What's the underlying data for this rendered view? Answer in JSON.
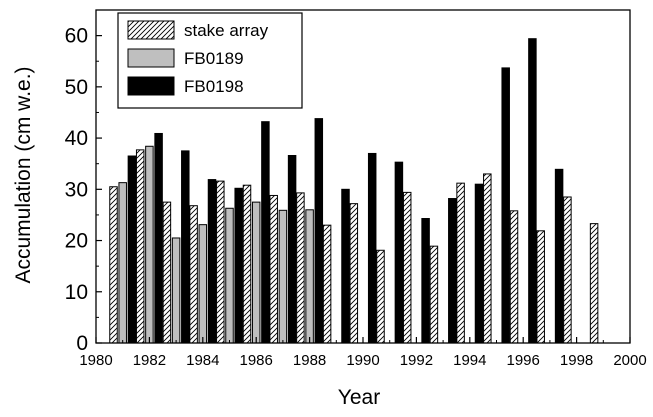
{
  "chart_data": {
    "type": "bar",
    "xlabel": "Year",
    "ylabel": "Accumulation (cm w.e.)",
    "xlim": [
      1980,
      2000
    ],
    "ylim": [
      0,
      65
    ],
    "xticks": [
      1980,
      1982,
      1984,
      1986,
      1988,
      1990,
      1992,
      1994,
      1996,
      1998,
      2000
    ],
    "yticks": [
      0,
      10,
      20,
      30,
      40,
      50,
      60
    ],
    "grid": false,
    "legend_position": "top-left",
    "series": [
      {
        "name": "stake array",
        "fill": "hatch",
        "color": "#000000",
        "points": [
          {
            "x": 1981,
            "y": 30.5
          },
          {
            "x": 1982,
            "y": 37.7
          },
          {
            "x": 1983,
            "y": 27.5
          },
          {
            "x": 1984,
            "y": 26.8
          },
          {
            "x": 1985,
            "y": 31.6
          },
          {
            "x": 1986,
            "y": 30.8
          },
          {
            "x": 1987,
            "y": 28.8
          },
          {
            "x": 1988,
            "y": 29.3
          },
          {
            "x": 1989,
            "y": 23.0
          },
          {
            "x": 1990,
            "y": 27.2
          },
          {
            "x": 1991,
            "y": 18.1
          },
          {
            "x": 1992,
            "y": 29.4
          },
          {
            "x": 1993,
            "y": 18.9
          },
          {
            "x": 1994,
            "y": 31.2
          },
          {
            "x": 1995,
            "y": 33.0
          },
          {
            "x": 1996,
            "y": 25.8
          },
          {
            "x": 1997,
            "y": 21.9
          },
          {
            "x": 1998,
            "y": 28.5
          },
          {
            "x": 1999,
            "y": 23.3
          }
        ]
      },
      {
        "name": "FB0189",
        "fill": "solid",
        "color": "#bfbfbf",
        "points": [
          {
            "x": 1981,
            "y": 31.3
          },
          {
            "x": 1982,
            "y": 38.4
          },
          {
            "x": 1983,
            "y": 20.5
          },
          {
            "x": 1984,
            "y": 23.1
          },
          {
            "x": 1985,
            "y": 26.3
          },
          {
            "x": 1986,
            "y": 27.5
          },
          {
            "x": 1987,
            "y": 25.9
          },
          {
            "x": 1988,
            "y": 26.0
          }
        ]
      },
      {
        "name": "FB0198",
        "fill": "solid",
        "color": "#000000",
        "points": [
          {
            "x": 1981,
            "y": 36.5
          },
          {
            "x": 1982,
            "y": 40.9
          },
          {
            "x": 1983,
            "y": 37.5
          },
          {
            "x": 1984,
            "y": 31.9
          },
          {
            "x": 1985,
            "y": 30.2
          },
          {
            "x": 1986,
            "y": 43.2
          },
          {
            "x": 1987,
            "y": 36.6
          },
          {
            "x": 1988,
            "y": 43.8
          },
          {
            "x": 1989,
            "y": 30.0
          },
          {
            "x": 1990,
            "y": 37.0
          },
          {
            "x": 1991,
            "y": 35.3
          },
          {
            "x": 1992,
            "y": 24.3
          },
          {
            "x": 1993,
            "y": 28.2
          },
          {
            "x": 1994,
            "y": 31.0
          },
          {
            "x": 1995,
            "y": 53.7
          },
          {
            "x": 1996,
            "y": 59.4
          },
          {
            "x": 1997,
            "y": 33.9
          }
        ]
      }
    ]
  }
}
